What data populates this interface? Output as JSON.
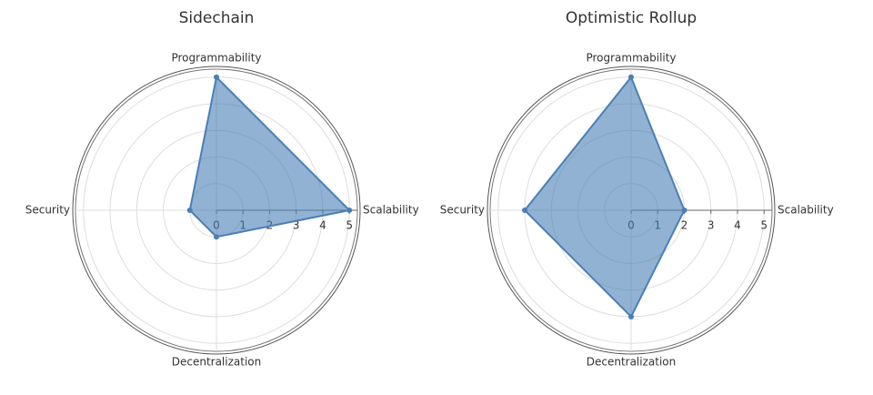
{
  "chart_data": [
    {
      "type": "radar",
      "title": "Sidechain",
      "categories": [
        "Scalability",
        "Programmability",
        "Security",
        "Decentralization"
      ],
      "values": [
        5,
        5,
        1,
        1
      ],
      "color": "#4a7fb5",
      "rlim": [
        0,
        5.3
      ],
      "rticks": [
        0,
        1,
        2,
        3,
        4,
        5
      ],
      "grid": true
    },
    {
      "type": "radar",
      "title": "Optimistic Rollup",
      "categories": [
        "Scalability",
        "Programmability",
        "Security",
        "Decentralization"
      ],
      "values": [
        2,
        5,
        4,
        4
      ],
      "color": "#4a7fb5",
      "rlim": [
        0,
        5.3
      ],
      "rticks": [
        0,
        1,
        2,
        3,
        4,
        5
      ],
      "grid": true
    }
  ]
}
